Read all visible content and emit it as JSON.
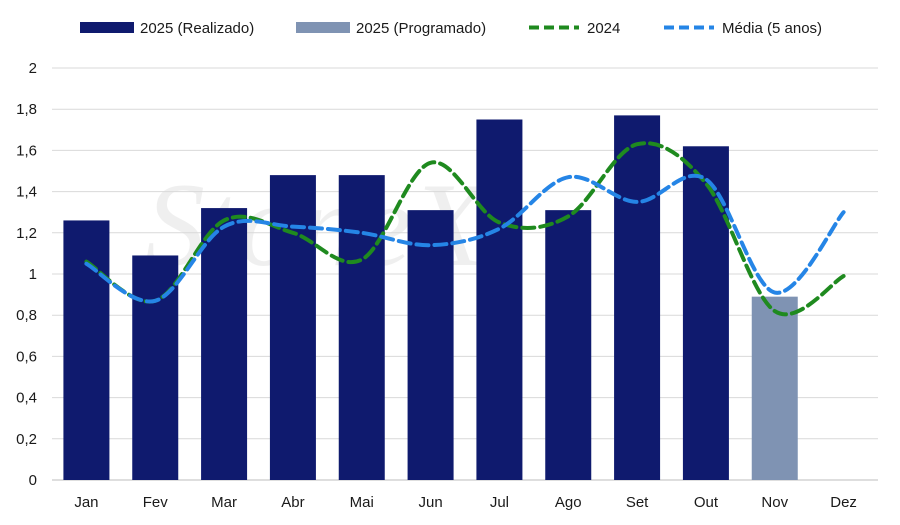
{
  "chart_data": {
    "type": "bar",
    "categories": [
      "Jan",
      "Fev",
      "Mar",
      "Abr",
      "Mai",
      "Jun",
      "Jul",
      "Ago",
      "Set",
      "Out",
      "Nov",
      "Dez"
    ],
    "series": [
      {
        "name": "2025 (Realizado)",
        "kind": "bar",
        "color": "#0f1a6e",
        "values": [
          1.26,
          1.09,
          1.32,
          1.48,
          1.48,
          1.31,
          1.75,
          1.31,
          1.77,
          1.62,
          null,
          null
        ]
      },
      {
        "name": "2025 (Programado)",
        "kind": "bar",
        "color": "#7f93b3",
        "values": [
          null,
          null,
          null,
          null,
          null,
          null,
          null,
          null,
          null,
          null,
          0.89,
          null
        ]
      },
      {
        "name": "2024",
        "kind": "line",
        "style": "dashed",
        "color": "#1f8a1f",
        "values": [
          1.06,
          0.87,
          1.26,
          1.2,
          1.07,
          1.54,
          1.25,
          1.28,
          1.63,
          1.44,
          0.82,
          0.99
        ]
      },
      {
        "name": "Média (5 anos)",
        "kind": "line",
        "style": "dashed",
        "color": "#2585e6",
        "values": [
          1.05,
          0.87,
          1.23,
          1.23,
          1.2,
          1.14,
          1.22,
          1.47,
          1.35,
          1.46,
          0.91,
          1.3
        ]
      }
    ],
    "ylim": [
      0,
      2
    ],
    "yticks": [
      "0",
      "0,2",
      "0,4",
      "0,6",
      "0,8",
      "1",
      "1,2",
      "1,4",
      "1,6",
      "1,8",
      "2"
    ],
    "grid": true,
    "legend_position": "top"
  }
}
